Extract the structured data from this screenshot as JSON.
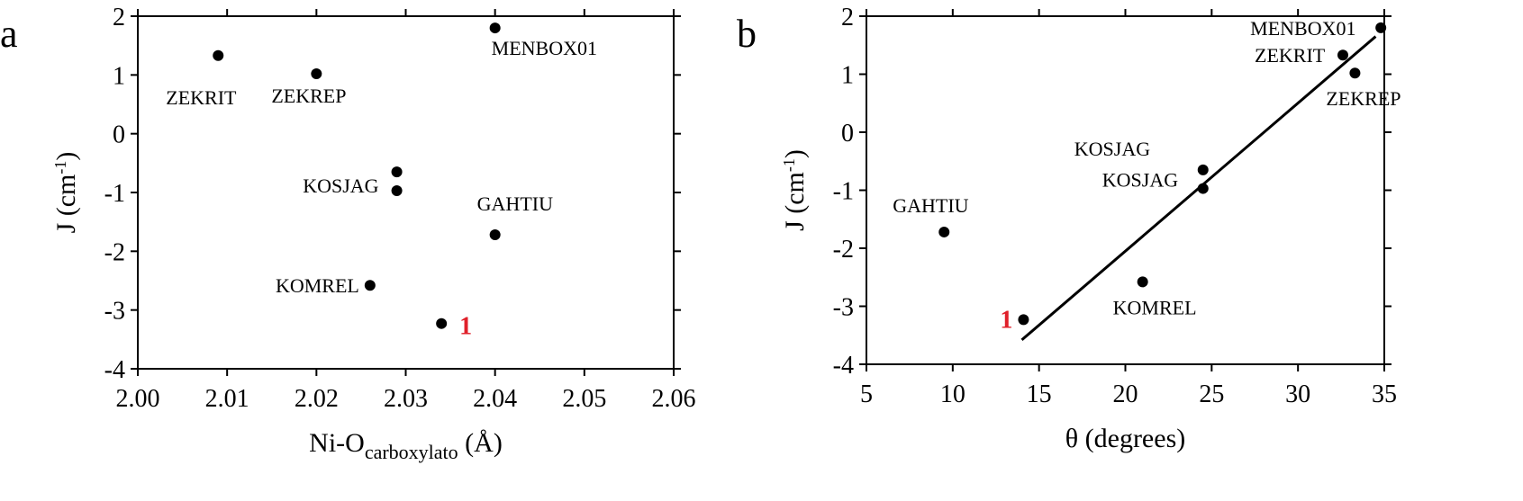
{
  "colors": {
    "axis": "#000000",
    "point": "#000000",
    "highlight": "#e0202a"
  },
  "chart_data": [
    {
      "type": "scatter",
      "panel_label": "a",
      "xlabel": "Ni-O",
      "xlabel_sub": "carboxylato",
      "xlabel_unit": " (Å)",
      "ylabel": "J (cm",
      "ylabel_sup": "-1",
      "ylabel_close": ")",
      "xlim": [
        2.0,
        2.06
      ],
      "ylim": [
        -4,
        2
      ],
      "xticks": [
        2.0,
        2.01,
        2.02,
        2.03,
        2.04,
        2.05,
        2.06
      ],
      "xtick_labels": [
        "2.00",
        "2.01",
        "2.02",
        "2.03",
        "2.04",
        "2.05",
        "2.06"
      ],
      "yticks": [
        -4,
        -3,
        -2,
        -1,
        0,
        1,
        2
      ],
      "ytick_labels": [
        "-4",
        "-3",
        "-2",
        "-1",
        "0",
        "1",
        "2"
      ],
      "points": [
        {
          "x": 2.009,
          "y": 1.33,
          "label": "ZEKRIT"
        },
        {
          "x": 2.02,
          "y": 1.02,
          "label": "ZEKREP"
        },
        {
          "x": 2.04,
          "y": 1.8,
          "label": "MENBOX01"
        },
        {
          "x": 2.029,
          "y": -0.65,
          "label": ""
        },
        {
          "x": 2.029,
          "y": -0.97,
          "label": "KOSJAG"
        },
        {
          "x": 2.04,
          "y": -1.72,
          "label": "GAHTIU"
        },
        {
          "x": 2.026,
          "y": -2.58,
          "label": "KOMREL"
        },
        {
          "x": 2.034,
          "y": -3.23,
          "label": "1",
          "highlight": true
        }
      ]
    },
    {
      "type": "scatter",
      "panel_label": "b",
      "xlabel": "θ (degrees)",
      "ylabel": "J (cm",
      "ylabel_sup": "-1",
      "ylabel_close": ")",
      "xlim": [
        5,
        35
      ],
      "ylim": [
        -4,
        2
      ],
      "xticks": [
        5,
        10,
        15,
        20,
        25,
        30,
        35
      ],
      "xtick_labels": [
        "5",
        "10",
        "15",
        "20",
        "25",
        "30",
        "35"
      ],
      "yticks": [
        -4,
        -3,
        -2,
        -1,
        0,
        1,
        2
      ],
      "ytick_labels": [
        "-4",
        "-3",
        "-2",
        "-1",
        "0",
        "1",
        "2"
      ],
      "points": [
        {
          "x": 9.5,
          "y": -1.72,
          "label": "GAHTIU"
        },
        {
          "x": 14.1,
          "y": -3.23,
          "label": "1",
          "highlight": true
        },
        {
          "x": 21.0,
          "y": -2.58,
          "label": "KOMREL"
        },
        {
          "x": 24.5,
          "y": -0.65,
          "label": "KOSJAG"
        },
        {
          "x": 24.5,
          "y": -0.97,
          "label": "KOSJAG"
        },
        {
          "x": 32.6,
          "y": 1.33,
          "label": "ZEKRIT"
        },
        {
          "x": 33.3,
          "y": 1.02,
          "label": "ZEKREP"
        },
        {
          "x": 34.8,
          "y": 1.8,
          "label": "MENBOX01"
        }
      ],
      "fit_line": {
        "x": [
          14.0,
          34.5
        ],
        "y": [
          -3.58,
          1.65
        ]
      }
    }
  ]
}
